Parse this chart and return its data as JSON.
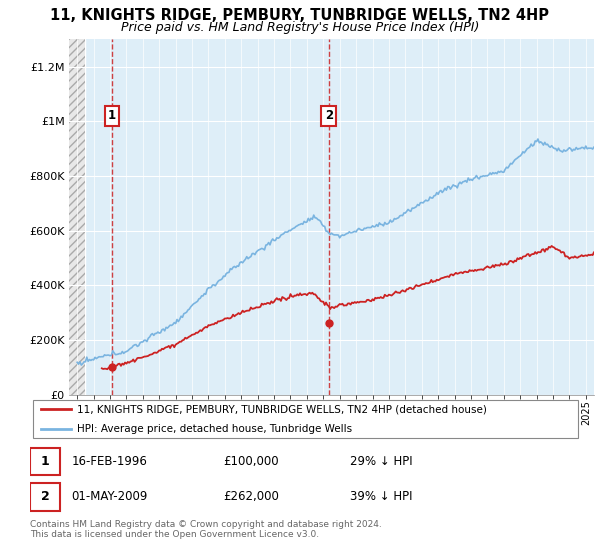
{
  "title": "11, KNIGHTS RIDGE, PEMBURY, TUNBRIDGE WELLS, TN2 4HP",
  "subtitle": "Price paid vs. HM Land Registry's House Price Index (HPI)",
  "title_fontsize": 10.5,
  "subtitle_fontsize": 9,
  "sale1_date": 1996.12,
  "sale1_price": 100000,
  "sale2_date": 2009.33,
  "sale2_price": 262000,
  "hpi_color": "#7ab4e0",
  "hpi_fill_color": "#deeef8",
  "price_color": "#cc2222",
  "marker_color": "#cc2222",
  "vline_color": "#cc2222",
  "hatch_color": "#cccccc",
  "grid_color": "#cccccc",
  "ylim_max": 1300000,
  "legend1": "11, KNIGHTS RIDGE, PEMBURY, TUNBRIDGE WELLS, TN2 4HP (detached house)",
  "legend2": "HPI: Average price, detached house, Tunbridge Wells",
  "footer": "Contains HM Land Registry data © Crown copyright and database right 2024.\nThis data is licensed under the Open Government Licence v3.0."
}
